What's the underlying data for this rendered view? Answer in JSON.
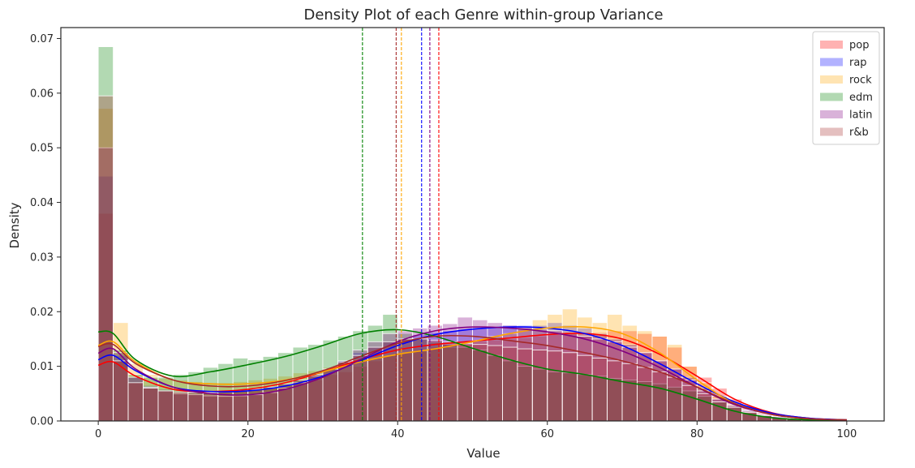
{
  "chart_data": {
    "type": "histogram",
    "title": "Density Plot of each Genre within-group Variance",
    "xlabel": "Value",
    "ylabel": "Density",
    "xlim": [
      -5,
      105
    ],
    "ylim": [
      0,
      0.072
    ],
    "xticks": [
      0,
      20,
      40,
      60,
      80,
      100
    ],
    "yticks": [
      0.0,
      0.01,
      0.02,
      0.03,
      0.04,
      0.05,
      0.06,
      0.07
    ],
    "ytick_labels": [
      "0.00",
      "0.01",
      "0.02",
      "0.03",
      "0.04",
      "0.05",
      "0.06",
      "0.07"
    ],
    "bin_width": 2,
    "bin_start": 0,
    "legend_position": "top-right",
    "series": [
      {
        "name": "pop",
        "color": "#ff0000",
        "mean": 45.5,
        "kde_x": [
          0,
          2,
          5,
          10,
          15,
          20,
          25,
          30,
          35,
          40,
          45,
          50,
          55,
          60,
          65,
          70,
          75,
          80,
          85,
          90,
          95,
          100
        ],
        "kde_y": [
          0.0102,
          0.0108,
          0.0082,
          0.0058,
          0.0054,
          0.0058,
          0.007,
          0.009,
          0.0112,
          0.013,
          0.014,
          0.0146,
          0.0152,
          0.0158,
          0.016,
          0.015,
          0.0122,
          0.0082,
          0.004,
          0.0015,
          0.0005,
          0.0002
        ],
        "hist": [
          0.038,
          0.011,
          0.007,
          0.006,
          0.0055,
          0.0052,
          0.005,
          0.0052,
          0.0054,
          0.0055,
          0.0058,
          0.006,
          0.0065,
          0.007,
          0.0075,
          0.0085,
          0.009,
          0.01,
          0.011,
          0.012,
          0.0125,
          0.013,
          0.0135,
          0.014,
          0.014,
          0.0145,
          0.0148,
          0.015,
          0.0152,
          0.0155,
          0.0158,
          0.016,
          0.016,
          0.0162,
          0.0165,
          0.0165,
          0.016,
          0.0155,
          0.0135,
          0.01,
          0.008,
          0.006,
          0.004,
          0.0025,
          0.0015,
          0.001,
          0.0006,
          0.0003,
          0.0002,
          0.0001
        ]
      },
      {
        "name": "rap",
        "color": "#0000ff",
        "mean": 43.2,
        "kde_x": [
          0,
          2,
          5,
          10,
          15,
          20,
          25,
          30,
          35,
          40,
          45,
          50,
          55,
          60,
          65,
          70,
          75,
          80,
          85,
          90,
          95,
          100
        ],
        "kde_y": [
          0.0112,
          0.012,
          0.0092,
          0.0062,
          0.0054,
          0.0055,
          0.0064,
          0.0082,
          0.011,
          0.0138,
          0.0158,
          0.0168,
          0.0172,
          0.017,
          0.016,
          0.0138,
          0.0105,
          0.0068,
          0.0035,
          0.0014,
          0.0005,
          0.0002
        ],
        "hist": [
          0.0448,
          0.012,
          0.008,
          0.0065,
          0.0058,
          0.0055,
          0.0052,
          0.0052,
          0.0054,
          0.0055,
          0.0058,
          0.0062,
          0.0068,
          0.0075,
          0.0085,
          0.0095,
          0.011,
          0.0125,
          0.0135,
          0.0145,
          0.015,
          0.0158,
          0.0162,
          0.0165,
          0.0168,
          0.017,
          0.0172,
          0.0175,
          0.0175,
          0.0175,
          0.018,
          0.0175,
          0.017,
          0.016,
          0.015,
          0.014,
          0.0125,
          0.011,
          0.0095,
          0.008,
          0.006,
          0.004,
          0.003,
          0.002,
          0.0012,
          0.0008,
          0.0005,
          0.0003,
          0.0002,
          0.0001
        ]
      },
      {
        "name": "rock",
        "color": "#ffa500",
        "mean": 40.5,
        "kde_x": [
          0,
          2,
          5,
          10,
          15,
          20,
          25,
          30,
          35,
          40,
          45,
          50,
          55,
          60,
          65,
          70,
          75,
          80,
          85,
          90,
          95,
          100
        ],
        "kde_y": [
          0.0138,
          0.0145,
          0.0108,
          0.0075,
          0.0068,
          0.0068,
          0.0075,
          0.009,
          0.0108,
          0.0122,
          0.0132,
          0.0145,
          0.016,
          0.017,
          0.0172,
          0.016,
          0.0125,
          0.0075,
          0.0032,
          0.0012,
          0.0004,
          0.0002
        ],
        "hist": [
          0.0572,
          0.018,
          0.0105,
          0.0085,
          0.0078,
          0.0075,
          0.0072,
          0.007,
          0.007,
          0.0072,
          0.0075,
          0.0078,
          0.0082,
          0.0088,
          0.0092,
          0.0098,
          0.0105,
          0.0112,
          0.0115,
          0.012,
          0.0125,
          0.0128,
          0.0132,
          0.0135,
          0.014,
          0.0148,
          0.0155,
          0.016,
          0.017,
          0.0185,
          0.0195,
          0.0205,
          0.019,
          0.018,
          0.0195,
          0.0175,
          0.0165,
          0.0155,
          0.014,
          0.01,
          0.007,
          0.0045,
          0.003,
          0.0018,
          0.001,
          0.0006,
          0.0004,
          0.0003,
          0.0002,
          0.0001
        ]
      },
      {
        "name": "edm",
        "color": "#008000",
        "mean": 35.3,
        "kde_x": [
          0,
          2,
          5,
          10,
          15,
          20,
          25,
          30,
          35,
          40,
          45,
          50,
          55,
          60,
          65,
          70,
          75,
          80,
          85,
          90,
          95,
          100
        ],
        "kde_y": [
          0.0163,
          0.016,
          0.0112,
          0.0082,
          0.009,
          0.0103,
          0.0118,
          0.0138,
          0.016,
          0.0167,
          0.0155,
          0.0133,
          0.0112,
          0.0095,
          0.0085,
          0.0072,
          0.006,
          0.004,
          0.0018,
          0.0006,
          0.0002,
          0.0001
        ],
        "hist": [
          0.0685,
          0.013,
          0.0085,
          0.008,
          0.008,
          0.0085,
          0.009,
          0.0098,
          0.0105,
          0.0115,
          0.0112,
          0.0118,
          0.0125,
          0.0135,
          0.014,
          0.0148,
          0.0155,
          0.0165,
          0.0175,
          0.0195,
          0.016,
          0.015,
          0.0145,
          0.014,
          0.0135,
          0.013,
          0.012,
          0.011,
          0.01,
          0.0095,
          0.009,
          0.0088,
          0.0085,
          0.0082,
          0.0078,
          0.0075,
          0.0072,
          0.0068,
          0.0062,
          0.0055,
          0.0045,
          0.0035,
          0.0025,
          0.0015,
          0.001,
          0.0006,
          0.0004,
          0.0002,
          0.0001,
          0.0001
        ]
      },
      {
        "name": "latin",
        "color": "#800080",
        "mean": 44.3,
        "kde_x": [
          0,
          2,
          5,
          10,
          15,
          20,
          25,
          30,
          35,
          40,
          45,
          50,
          55,
          60,
          65,
          70,
          75,
          80,
          85,
          90,
          95,
          100
        ],
        "kde_y": [
          0.0124,
          0.0132,
          0.0095,
          0.0062,
          0.005,
          0.0048,
          0.0058,
          0.008,
          0.0112,
          0.0145,
          0.0165,
          0.0172,
          0.017,
          0.0163,
          0.015,
          0.0128,
          0.0098,
          0.0062,
          0.003,
          0.0012,
          0.0004,
          0.0002
        ],
        "hist": [
          0.05,
          0.0125,
          0.008,
          0.0062,
          0.0055,
          0.005,
          0.0048,
          0.0046,
          0.0045,
          0.0046,
          0.0048,
          0.0052,
          0.006,
          0.007,
          0.0082,
          0.0095,
          0.011,
          0.013,
          0.0145,
          0.016,
          0.0165,
          0.017,
          0.0175,
          0.0178,
          0.019,
          0.0185,
          0.018,
          0.0175,
          0.0172,
          0.0168,
          0.0165,
          0.016,
          0.0155,
          0.015,
          0.0145,
          0.0135,
          0.0125,
          0.011,
          0.0095,
          0.0075,
          0.0055,
          0.004,
          0.0028,
          0.0018,
          0.001,
          0.0006,
          0.0004,
          0.0003,
          0.0002,
          0.0001
        ]
      },
      {
        "name": "r&b",
        "color": "#a52a2a",
        "mean": 39.8,
        "kde_x": [
          0,
          2,
          5,
          10,
          15,
          20,
          25,
          30,
          35,
          40,
          45,
          50,
          55,
          60,
          65,
          70,
          75,
          80,
          85,
          90,
          95,
          100
        ],
        "kde_y": [
          0.0136,
          0.014,
          0.0105,
          0.0075,
          0.0064,
          0.0064,
          0.0074,
          0.0092,
          0.0118,
          0.0142,
          0.0155,
          0.0155,
          0.0147,
          0.0138,
          0.0125,
          0.011,
          0.009,
          0.0062,
          0.0032,
          0.0012,
          0.0004,
          0.0002
        ],
        "hist": [
          0.0595,
          0.011,
          0.007,
          0.006,
          0.0055,
          0.0053,
          0.0052,
          0.0052,
          0.0053,
          0.0055,
          0.0058,
          0.0062,
          0.0068,
          0.0075,
          0.0085,
          0.0095,
          0.0108,
          0.012,
          0.0135,
          0.0145,
          0.015,
          0.015,
          0.0148,
          0.0145,
          0.0142,
          0.014,
          0.0138,
          0.0135,
          0.0132,
          0.013,
          0.0128,
          0.0125,
          0.012,
          0.0115,
          0.011,
          0.0105,
          0.0098,
          0.009,
          0.008,
          0.0065,
          0.005,
          0.0035,
          0.0025,
          0.0016,
          0.001,
          0.0006,
          0.0004,
          0.0002,
          0.0001,
          0.0001
        ]
      }
    ]
  }
}
